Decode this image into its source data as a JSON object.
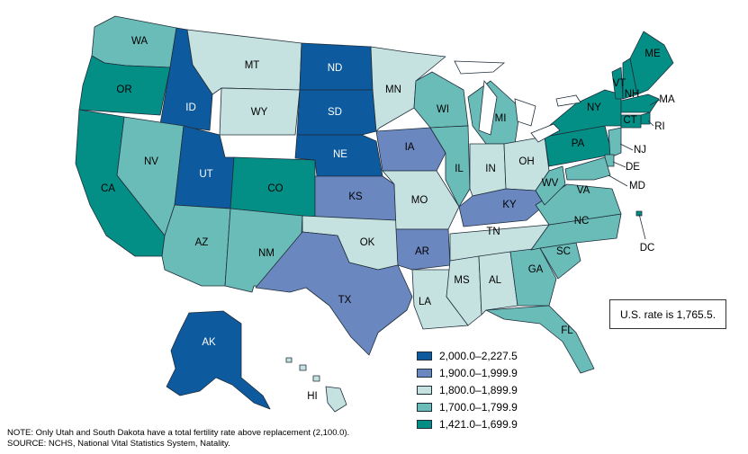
{
  "colors": {
    "c2000": "#0d5a9e",
    "c1900": "#6b87c0",
    "c1800": "#c6e2e0",
    "c1700": "#6abcb8",
    "c1421": "#048f86",
    "outline": "#1f2d3a"
  },
  "legend": [
    {
      "key": "c2000",
      "label": "2,000.0–2,227.5"
    },
    {
      "key": "c1900",
      "label": "1,900.0–1,999.9"
    },
    {
      "key": "c1800",
      "label": "1,800.0–1,899.9"
    },
    {
      "key": "c1700",
      "label": "1,700.0–1,799.9"
    },
    {
      "key": "c1421",
      "label": "1,421.0–1,699.9"
    }
  ],
  "us_rate": "U.S. rate is 1,765.5.",
  "note": "NOTE: Only Utah and South Dakota have a total fertility rate above replacement (2,100.0).",
  "source": "SOURCE: NCHS, National Vital Statistics System, Natality.",
  "states": [
    {
      "abbr": "WA",
      "category": "c1700"
    },
    {
      "abbr": "OR",
      "category": "c1421"
    },
    {
      "abbr": "CA",
      "category": "c1421"
    },
    {
      "abbr": "ID",
      "category": "c2000"
    },
    {
      "abbr": "NV",
      "category": "c1700"
    },
    {
      "abbr": "MT",
      "category": "c1800"
    },
    {
      "abbr": "WY",
      "category": "c1800"
    },
    {
      "abbr": "UT",
      "category": "c2000"
    },
    {
      "abbr": "AZ",
      "category": "c1700"
    },
    {
      "abbr": "CO",
      "category": "c1421"
    },
    {
      "abbr": "NM",
      "category": "c1700"
    },
    {
      "abbr": "ND",
      "category": "c2000"
    },
    {
      "abbr": "SD",
      "category": "c2000"
    },
    {
      "abbr": "NE",
      "category": "c2000"
    },
    {
      "abbr": "KS",
      "category": "c1900"
    },
    {
      "abbr": "OK",
      "category": "c1800"
    },
    {
      "abbr": "TX",
      "category": "c1900"
    },
    {
      "abbr": "MN",
      "category": "c1800"
    },
    {
      "abbr": "IA",
      "category": "c1900"
    },
    {
      "abbr": "MO",
      "category": "c1800"
    },
    {
      "abbr": "AR",
      "category": "c1900"
    },
    {
      "abbr": "LA",
      "category": "c1800"
    },
    {
      "abbr": "WI",
      "category": "c1700"
    },
    {
      "abbr": "IL",
      "category": "c1700"
    },
    {
      "abbr": "MI",
      "category": "c1700"
    },
    {
      "abbr": "IN",
      "category": "c1800"
    },
    {
      "abbr": "OH",
      "category": "c1800"
    },
    {
      "abbr": "KY",
      "category": "c1900"
    },
    {
      "abbr": "TN",
      "category": "c1800"
    },
    {
      "abbr": "MS",
      "category": "c1800"
    },
    {
      "abbr": "AL",
      "category": "c1800"
    },
    {
      "abbr": "GA",
      "category": "c1700"
    },
    {
      "abbr": "FL",
      "category": "c1700"
    },
    {
      "abbr": "SC",
      "category": "c1700"
    },
    {
      "abbr": "NC",
      "category": "c1700"
    },
    {
      "abbr": "VA",
      "category": "c1700"
    },
    {
      "abbr": "WV",
      "category": "c1700"
    },
    {
      "abbr": "PA",
      "category": "c1421"
    },
    {
      "abbr": "NY",
      "category": "c1421"
    },
    {
      "abbr": "VT",
      "category": "c1421"
    },
    {
      "abbr": "NH",
      "category": "c1421"
    },
    {
      "abbr": "ME",
      "category": "c1421"
    },
    {
      "abbr": "MA",
      "category": "c1421"
    },
    {
      "abbr": "RI",
      "category": "c1421"
    },
    {
      "abbr": "CT",
      "category": "c1421"
    },
    {
      "abbr": "NJ",
      "category": "c1700"
    },
    {
      "abbr": "DE",
      "category": "c1700"
    },
    {
      "abbr": "MD",
      "category": "c1700"
    },
    {
      "abbr": "DC",
      "category": "c1421"
    },
    {
      "abbr": "AK",
      "category": "c2000"
    },
    {
      "abbr": "HI",
      "category": "c1800"
    }
  ]
}
